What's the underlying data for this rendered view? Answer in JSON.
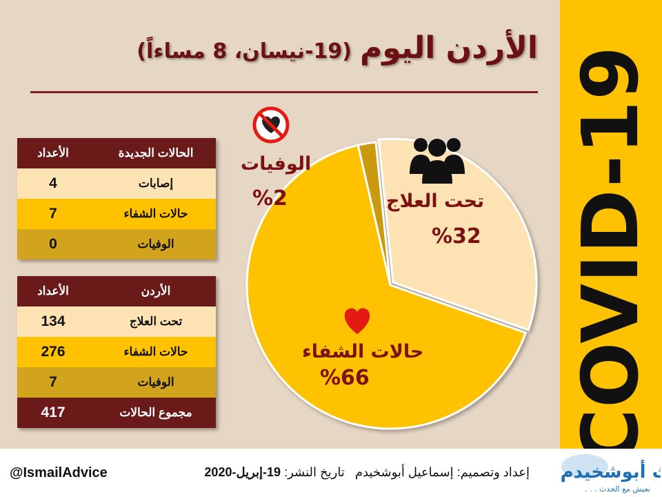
{
  "band": {
    "text": "COVID-19",
    "color": "#fec200"
  },
  "title": {
    "main": "الأردن اليوم",
    "sub": "(19-نيسان، 8 مساءاً)"
  },
  "daily_table": {
    "header": {
      "label": "الحالات الجديدة",
      "num": "الأعداد"
    },
    "rows": [
      {
        "label": "إصابات",
        "num": "4"
      },
      {
        "label": "حالات الشفاء",
        "num": "7"
      },
      {
        "label": "الوفيات",
        "num": "0"
      }
    ]
  },
  "total_table": {
    "header": {
      "label": "الأردن",
      "num": "الأعداد"
    },
    "rows": [
      {
        "label": "تحت العلاج",
        "num": "134"
      },
      {
        "label": "حالات الشفاء",
        "num": "276"
      },
      {
        "label": "الوفيات",
        "num": "7"
      },
      {
        "label": "مجموع الحالات",
        "num": "417"
      }
    ]
  },
  "chart_data": {
    "type": "pie",
    "title": "",
    "slices": [
      {
        "name": "تحت العلاج",
        "value": 32,
        "label": "%32",
        "color": "#fde3b4",
        "icon": "people-group-icon"
      },
      {
        "name": "حالات الشفاء",
        "value": 66,
        "label": "%66",
        "color": "#fec200",
        "icon": "heart-icon"
      },
      {
        "name": "الوفيات",
        "value": 2,
        "label": "%2",
        "color": "#c99a10",
        "icon": "no-heart-icon"
      }
    ],
    "legend": "none"
  },
  "footer": {
    "handle": "@IsmailAdvice",
    "credit_prefix": "إعداد وتصميم: إسماعيل أبوشخيدم",
    "date_label": "تاريخ النشر:",
    "date_value": "19-إبريل-2020",
    "logo_text": "أحداث أبوشخيدم",
    "logo_tagline": "نعيش مع الحدث . . ."
  }
}
